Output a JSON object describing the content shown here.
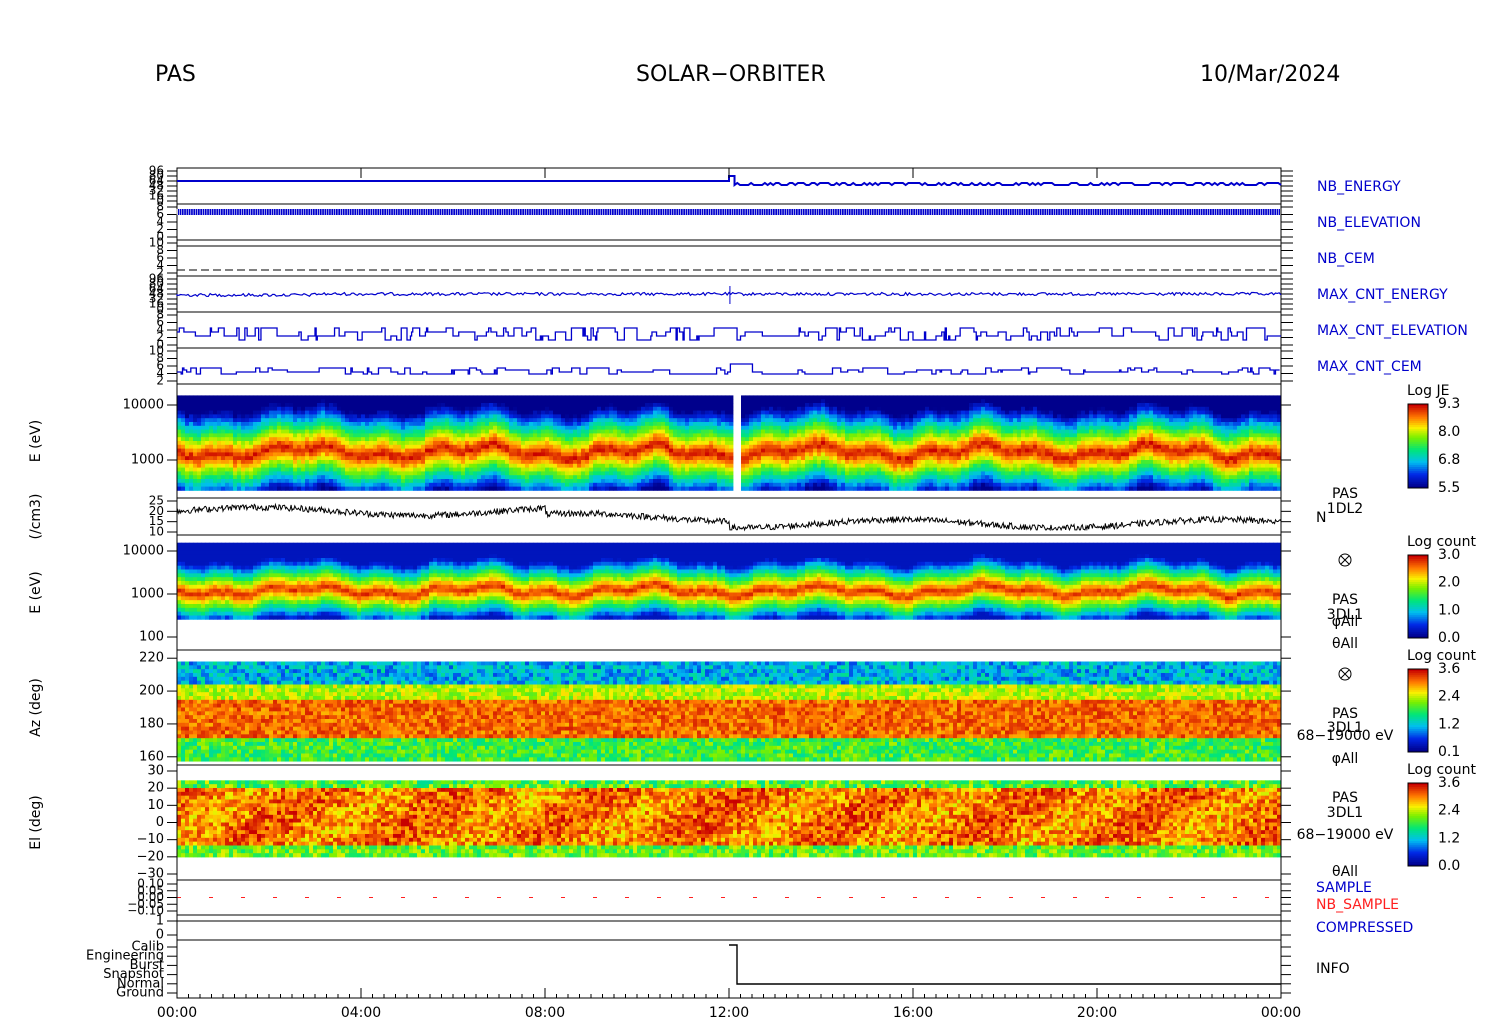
{
  "header": {
    "instrument": "PAS",
    "mission": "SOLAR−ORBITER",
    "date": "10/Mar/2024"
  },
  "colors": {
    "blue_line": "#0000cc",
    "red_line": "#ff2020",
    "black": "#000000"
  },
  "chart_data": {
    "type": "heatmap",
    "x_ticks": [
      "00:00",
      "04:00",
      "08:00",
      "12:00",
      "16:00",
      "20:00",
      "00:00"
    ],
    "x_range_hours": [
      0,
      24
    ],
    "hk_panels": [
      {
        "id": "nb_energy",
        "label": "NB_ENERGY",
        "label_color": "#0000cc",
        "ticks": [
          "96",
          "80",
          "64",
          "48",
          "32",
          "16",
          "0"
        ]
      },
      {
        "id": "nb_elevation",
        "label": "NB_ELEVATION",
        "label_color": "#0000cc",
        "ticks": [
          "8",
          "6",
          "4",
          "2",
          "0"
        ]
      },
      {
        "id": "nb_cem",
        "label": "NB_CEM",
        "label_color": "#0000cc",
        "ticks": [
          "10",
          "8",
          "6",
          "4",
          "2"
        ]
      },
      {
        "id": "max_cnt_energy",
        "label": "MAX_CNT_ENERGY",
        "label_color": "#0000cc",
        "ticks": [
          "96",
          "80",
          "64",
          "48",
          "32",
          "16",
          "0"
        ]
      },
      {
        "id": "max_cnt_elevation",
        "label": "MAX_CNT_ELEVATION",
        "label_color": "#0000cc",
        "ticks": [
          "8",
          "6",
          "4",
          "2",
          "0"
        ]
      },
      {
        "id": "max_cnt_cem",
        "label": "MAX_CNT_CEM",
        "label_color": "#0000cc",
        "ticks": [
          "10",
          "8",
          "6",
          "4",
          "2"
        ]
      }
    ],
    "energy_spectrogram": {
      "ylabel": "E (eV)",
      "yticks": [
        "10000",
        "1000"
      ],
      "colorbar": {
        "title": "Log JE",
        "ticks": [
          "9.3",
          "8.0",
          "6.8",
          "5.5"
        ],
        "range": [
          5.5,
          9.3
        ]
      }
    },
    "density": {
      "ylabel": "(/cm3)",
      "yticks": [
        "25",
        "20",
        "15",
        "10"
      ],
      "ylim": [
        10,
        25
      ],
      "labels": [
        "PAS",
        "1DL2",
        "N"
      ]
    },
    "energy_3d": {
      "ylabel": "E (eV)",
      "yticks": [
        "10000",
        "1000",
        "100"
      ],
      "colorbar": {
        "title": "Log count",
        "ticks": [
          "3.0",
          "2.0",
          "1.0",
          "0.0"
        ],
        "range": [
          0.0,
          3.0
        ]
      },
      "labels": [
        "PAS",
        "3DL1",
        "φAll",
        "θAll"
      ]
    },
    "azimuth": {
      "ylabel": "Az (deg)",
      "yticks": [
        "220",
        "200",
        "180",
        "160"
      ],
      "ylim": [
        155,
        225
      ],
      "colorbar": {
        "title": "Log count",
        "ticks": [
          "3.6",
          "2.4",
          "1.2",
          "0.1"
        ],
        "range": [
          0.1,
          3.6
        ]
      },
      "labels": [
        "PAS",
        "3DL1",
        "68−19000 eV",
        "φAll"
      ]
    },
    "elevation": {
      "ylabel": "El (deg)",
      "yticks": [
        "30",
        "20",
        "10",
        "0",
        "−10",
        "−20",
        "−30"
      ],
      "ylim": [
        -30,
        30
      ],
      "colorbar": {
        "title": "Log count",
        "ticks": [
          "3.6",
          "2.4",
          "1.2",
          "0.0"
        ],
        "range": [
          0.0,
          3.6
        ]
      },
      "labels": [
        "PAS",
        "3DL1",
        "68−19000 eV",
        "θAll"
      ]
    },
    "sample": {
      "ticks": [
        "0.10",
        "0.05",
        "0.00",
        "−0.05",
        "−0.10"
      ],
      "labels": [
        {
          "text": "SAMPLE",
          "color": "#0000cc"
        },
        {
          "text": "NB_SAMPLE",
          "color": "#ff2020"
        }
      ]
    },
    "compressed": {
      "ticks": [
        "1",
        "0"
      ],
      "label": "COMPRESSED",
      "label_color": "#0000cc"
    },
    "info": {
      "ticks": [
        "Calib",
        "Engineering",
        "Burst",
        "Snapshot",
        "Normal",
        "Ground"
      ],
      "label": "INFO",
      "step_hour": 12.0
    }
  }
}
